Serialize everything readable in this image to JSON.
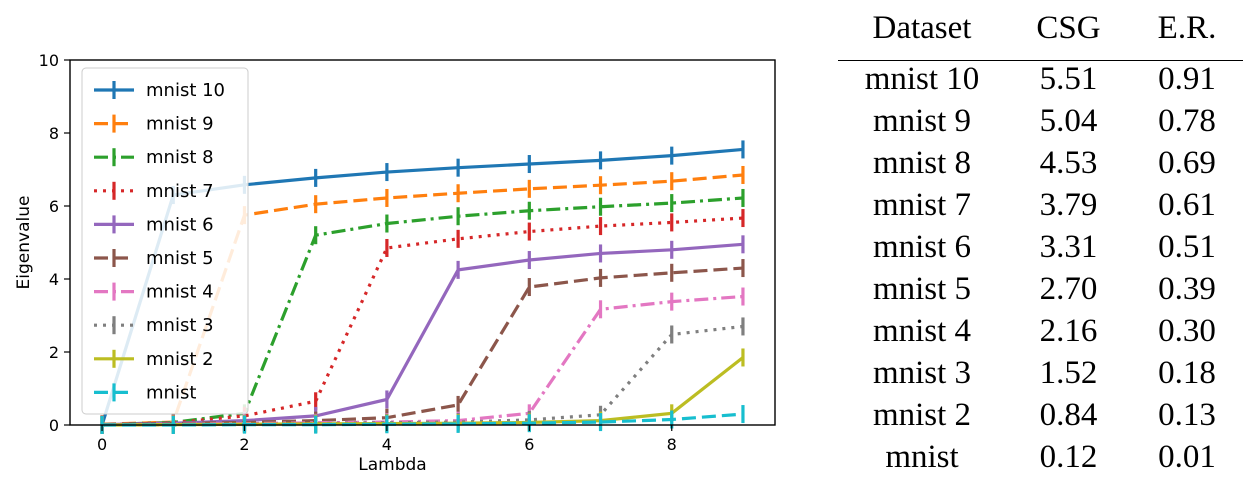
{
  "chart_data": {
    "type": "line",
    "xlabel": "Lambda",
    "ylabel": "Eigenvalue",
    "xlim": [
      -0.45,
      9.45
    ],
    "ylim": [
      0,
      10
    ],
    "x_ticks": [
      0,
      2,
      4,
      6,
      8
    ],
    "y_ticks": [
      0,
      2,
      4,
      6,
      8,
      10
    ],
    "grid": false,
    "legend_position": "upper-left",
    "x": [
      0,
      1,
      2,
      3,
      4,
      5,
      6,
      7,
      8,
      9
    ],
    "series": [
      {
        "name": "mnist 10",
        "color": "#1f77b4",
        "dash": "",
        "values": [
          0.0,
          6.3,
          6.58,
          6.77,
          6.93,
          7.05,
          7.15,
          7.25,
          7.38,
          7.55
        ]
      },
      {
        "name": "mnist 9",
        "color": "#ff7f0e",
        "dash": "14 6",
        "values": [
          0.02,
          0.08,
          5.75,
          6.05,
          6.22,
          6.35,
          6.47,
          6.57,
          6.68,
          6.85
        ]
      },
      {
        "name": "mnist 8",
        "color": "#2ca02c",
        "dash": "14 5 3 5",
        "values": [
          0.01,
          0.07,
          0.32,
          5.2,
          5.52,
          5.72,
          5.87,
          5.98,
          6.08,
          6.22
        ]
      },
      {
        "name": "mnist 7",
        "color": "#d62728",
        "dash": "3 6",
        "values": [
          0.01,
          0.06,
          0.25,
          0.65,
          4.85,
          5.1,
          5.3,
          5.45,
          5.55,
          5.67
        ]
      },
      {
        "name": "mnist 6",
        "color": "#9467bd",
        "dash": "",
        "values": [
          0.01,
          0.05,
          0.12,
          0.25,
          0.7,
          4.25,
          4.52,
          4.7,
          4.8,
          4.95
        ]
      },
      {
        "name": "mnist 5",
        "color": "#8c564b",
        "dash": "14 6",
        "values": [
          0.01,
          0.04,
          0.07,
          0.12,
          0.2,
          0.55,
          3.78,
          4.03,
          4.17,
          4.3
        ]
      },
      {
        "name": "mnist 4",
        "color": "#e377c2",
        "dash": "14 5 3 5",
        "values": [
          0.0,
          0.02,
          0.04,
          0.06,
          0.08,
          0.12,
          0.32,
          3.17,
          3.38,
          3.52
        ]
      },
      {
        "name": "mnist 3",
        "color": "#7f7f7f",
        "dash": "3 6",
        "values": [
          0.0,
          0.01,
          0.02,
          0.04,
          0.06,
          0.08,
          0.14,
          0.28,
          2.48,
          2.7
        ]
      },
      {
        "name": "mnist 2",
        "color": "#bcbd22",
        "dash": "",
        "values": [
          0.0,
          0.01,
          0.02,
          0.03,
          0.04,
          0.05,
          0.07,
          0.12,
          0.32,
          1.85
        ]
      },
      {
        "name": "mnist",
        "color": "#17becf",
        "dash": "14 6",
        "values": [
          0.0,
          0.0,
          0.01,
          0.01,
          0.02,
          0.03,
          0.05,
          0.08,
          0.15,
          0.3
        ]
      }
    ]
  },
  "table": {
    "headers": [
      "Dataset",
      "CSG",
      "E.R."
    ],
    "rows": [
      [
        "mnist 10",
        "5.51",
        "0.91"
      ],
      [
        "mnist 9",
        "5.04",
        "0.78"
      ],
      [
        "mnist 8",
        "4.53",
        "0.69"
      ],
      [
        "mnist 7",
        "3.79",
        "0.61"
      ],
      [
        "mnist 6",
        "3.31",
        "0.51"
      ],
      [
        "mnist 5",
        "2.70",
        "0.39"
      ],
      [
        "mnist 4",
        "2.16",
        "0.30"
      ],
      [
        "mnist 3",
        "1.52",
        "0.18"
      ],
      [
        "mnist 2",
        "0.84",
        "0.13"
      ],
      [
        "mnist",
        "0.12",
        "0.01"
      ]
    ]
  }
}
